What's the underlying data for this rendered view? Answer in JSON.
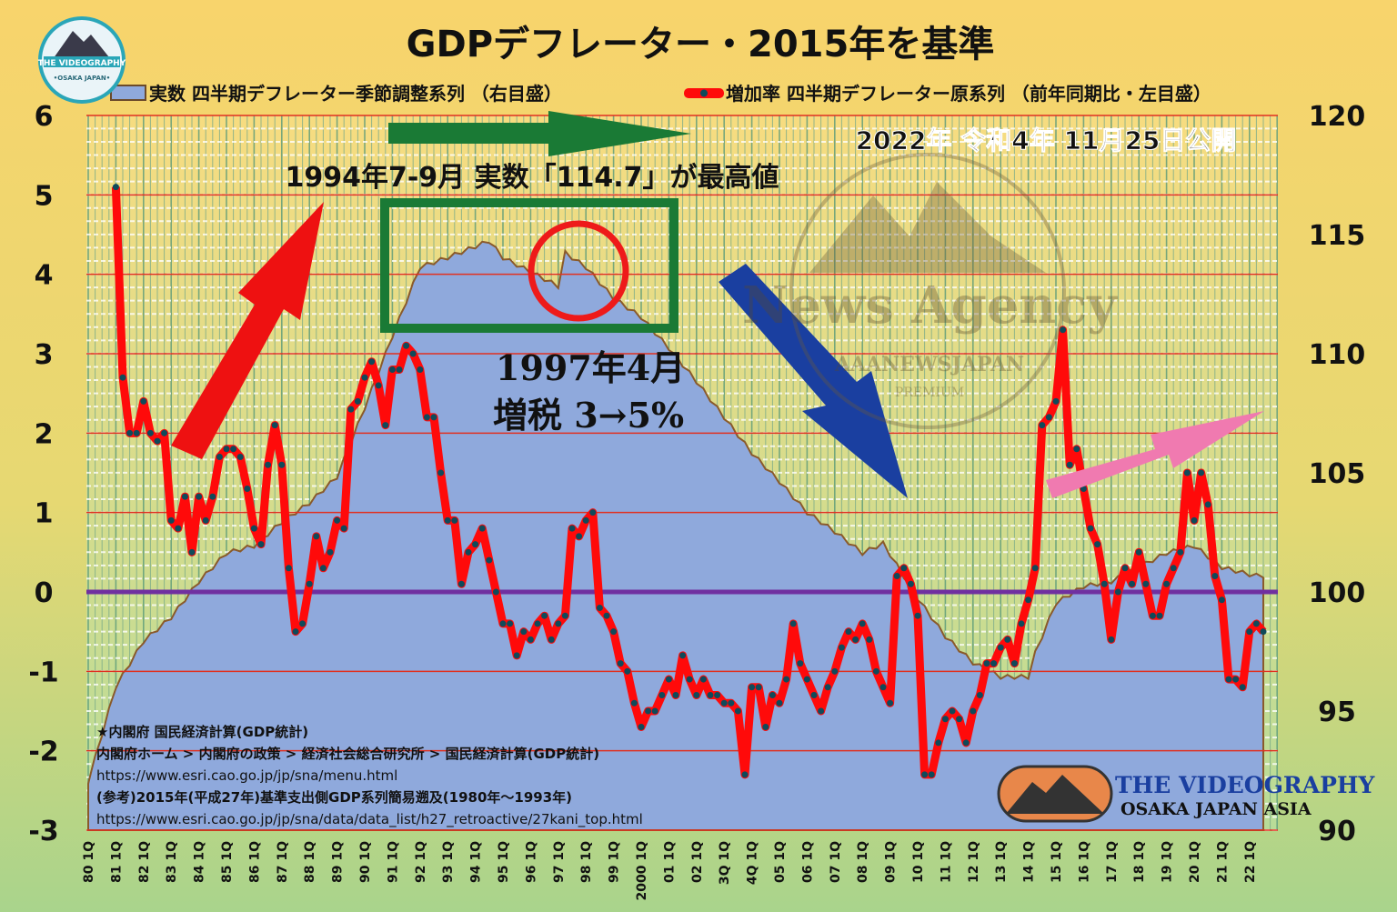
{
  "chart_data": {
    "type": "line+area",
    "title": "GDPデフレーター・2015年を基準",
    "legend": {
      "placement": "top",
      "area_series": "実数 四半期デフレーター季節調整系列 （右目盛）",
      "line_series": "増加率 四半期デフレーター原系列 （前年同期比・左目盛）"
    },
    "left_axis": {
      "ylim": [
        -3,
        6
      ],
      "ticks": [
        "6",
        "5",
        "4",
        "3",
        "2",
        "1",
        "0",
        "-1",
        "-2",
        "-3"
      ]
    },
    "right_axis": {
      "ylim": [
        90,
        120
      ],
      "ticks": [
        "120",
        "115",
        "110",
        "105",
        "100",
        "95",
        "90"
      ]
    },
    "x_tick_labels": [
      "80 1Q",
      "81 1Q",
      "82 1Q",
      "83 1Q",
      "84 1Q",
      "85 1Q",
      "86 1Q",
      "87 1Q",
      "88 1Q",
      "89 1Q",
      "90 1Q",
      "91 1Q",
      "92 1Q",
      "93 1Q",
      "94 1Q",
      "95 1Q",
      "96 1Q",
      "97 1Q",
      "98 1Q",
      "99 1Q",
      "2000 1Q",
      "01 1Q",
      "02 1Q",
      "3Q 1Q",
      "4Q 1Q",
      "05 1Q",
      "06 1Q",
      "07 1Q",
      "08 1Q",
      "09 1Q",
      "10 1Q",
      "11 1Q",
      "12 1Q",
      "13 1Q",
      "14 1Q",
      "15 1Q",
      "16 1Q",
      "17 1Q",
      "18 1Q",
      "19 1Q",
      "20 1Q",
      "21 1Q",
      "22 1Q"
    ],
    "grid": true,
    "colors": {
      "area": "#8fa9dc",
      "area_edge": "#8a5a2a",
      "line": "#ff0a0a",
      "marker": "#0f4a5a",
      "zero_line": "#7030a0",
      "gridline": "#e03020"
    },
    "growth_rate_series": {
      "name": "増加率 四半期デフレーター原系列",
      "start": "1981Q1",
      "values": [
        5.1,
        2.7,
        2.0,
        2.0,
        2.4,
        2.0,
        1.9,
        2.0,
        0.9,
        0.8,
        1.2,
        0.5,
        1.2,
        0.9,
        1.2,
        1.7,
        1.8,
        1.8,
        1.7,
        1.3,
        0.8,
        0.6,
        1.6,
        2.1,
        1.6,
        0.3,
        -0.5,
        -0.4,
        0.1,
        0.7,
        0.3,
        0.5,
        0.9,
        0.8,
        2.3,
        2.4,
        2.7,
        2.9,
        2.6,
        2.1,
        2.8,
        2.8,
        3.1,
        3.0,
        2.8,
        2.2,
        2.2,
        1.5,
        0.9,
        0.9,
        0.1,
        0.5,
        0.6,
        0.8,
        0.4,
        0.0,
        -0.4,
        -0.4,
        -0.8,
        -0.5,
        -0.6,
        -0.4,
        -0.3,
        -0.6,
        -0.4,
        -0.3,
        0.8,
        0.7,
        0.9,
        1.0,
        -0.2,
        -0.3,
        -0.5,
        -0.9,
        -1.0,
        -1.4,
        -1.7,
        -1.5,
        -1.5,
        -1.3,
        -1.1,
        -1.3,
        -0.8,
        -1.1,
        -1.3,
        -1.1,
        -1.3,
        -1.3,
        -1.4,
        -1.4,
        -1.5,
        -2.3,
        -1.2,
        -1.2,
        -1.7,
        -1.3,
        -1.4,
        -1.1,
        -0.4,
        -0.9,
        -1.1,
        -1.3,
        -1.5,
        -1.2,
        -1.0,
        -0.7,
        -0.5,
        -0.6,
        -0.4,
        -0.6,
        -1.0,
        -1.2,
        -1.4,
        0.2,
        0.3,
        0.1,
        -0.3,
        -2.3,
        -2.3,
        -1.9,
        -1.6,
        -1.5,
        -1.6,
        -1.9,
        -1.5,
        -1.3,
        -0.9,
        -0.9,
        -0.7,
        -0.6,
        -0.9,
        -0.4,
        -0.1,
        0.3,
        2.1,
        2.2,
        2.4,
        3.3,
        1.6,
        1.8,
        1.3,
        0.8,
        0.6,
        0.1,
        -0.6,
        0.0,
        0.3,
        0.1,
        0.5,
        0.1,
        -0.3,
        -0.3,
        0.1,
        0.3,
        0.5,
        1.5,
        0.9,
        1.5,
        1.1,
        0.2,
        -0.1,
        -1.1,
        -1.1,
        -1.2,
        -0.5,
        -0.4,
        -0.5
      ]
    },
    "level_series": {
      "name": "実数 四半期デフレーター季節調整系列",
      "points": [
        [
          "1980Q1",
          92.0
        ],
        [
          "1981Q1",
          96.0
        ],
        [
          "1982Q1",
          97.9
        ],
        [
          "1983Q1",
          98.9
        ],
        [
          "1984Q1",
          100.4
        ],
        [
          "1985Q1",
          101.6
        ],
        [
          "1986Q1",
          101.9
        ],
        [
          "1987Q1",
          102.9
        ],
        [
          "1988Q1",
          103.7
        ],
        [
          "1989Q1",
          104.8
        ],
        [
          "1990Q1",
          107.7
        ],
        [
          "1991Q1",
          110.7
        ],
        [
          "1992Q1",
          113.6
        ],
        [
          "1993Q1",
          114.0
        ],
        [
          "1994Q3",
          114.7
        ],
        [
          "1995Q1",
          114.0
        ],
        [
          "1996Q1",
          113.4
        ],
        [
          "1997Q1",
          112.8
        ],
        [
          "1997Q2",
          114.2
        ],
        [
          "1998Q1",
          113.6
        ],
        [
          "1999Q1",
          112.3
        ],
        [
          "2000Q1",
          111.5
        ],
        [
          "2001Q1",
          110.2
        ],
        [
          "2002Q1",
          108.8
        ],
        [
          "2003Q1",
          107.3
        ],
        [
          "2004Q1",
          105.8
        ],
        [
          "2005Q1",
          104.6
        ],
        [
          "2006Q1",
          103.3
        ],
        [
          "2007Q1",
          102.5
        ],
        [
          "2008Q1",
          101.6
        ],
        [
          "2008Q4",
          102.0
        ],
        [
          "2010Q1",
          99.7
        ],
        [
          "2011Q1",
          98.1
        ],
        [
          "2012Q1",
          97.0
        ],
        [
          "2013Q1",
          96.4
        ],
        [
          "2014Q1",
          96.4
        ],
        [
          "2014Q2",
          97.4
        ],
        [
          "2015Q1",
          99.5
        ],
        [
          "2016Q1",
          100.2
        ],
        [
          "2017Q1",
          100.4
        ],
        [
          "2018Q1",
          101.0
        ],
        [
          "2019Q1",
          101.6
        ],
        [
          "2020Q1",
          101.9
        ],
        [
          "2021Q1",
          101.0
        ],
        [
          "2022Q1",
          100.7
        ],
        [
          "2022Q3",
          100.6
        ]
      ]
    },
    "annotations": {
      "peak": "1994年7-9月 実数「114.7」が最高値",
      "tax_line1": "1997年4月",
      "tax_line2": "増税 3→5%",
      "published": "2022年 令和4年 11月25日公開"
    },
    "source": [
      "★内閣府 国民経済計算(GDP統計)",
      "内閣府ホーム > 内閣府の政策 > 経済社会総合研究所 > 国民経済計算(GDP統計)",
      "https://www.esri.cao.go.jp/jp/sna/menu.html",
      "(参考)2015年(平成27年)基準支出側GDP系列簡易遡及(1980年～1993年)",
      "https://www.esri.cao.go.jp/jp/sna/data/data_list/h27_retroactive/27kani_top.html"
    ]
  },
  "logos": {
    "top_left": {
      "line1": "THE VIDEOGRAPHY",
      "line2": "•OSAKA JAPAN•"
    },
    "watermark": {
      "line1": "News Agency",
      "line2": "AAANEWSJAPAN",
      "line3": "PREMIUM"
    },
    "bottom_right": {
      "line1": "THE VIDEOGRAPHY",
      "line2": "OSAKA JAPAN ASIA"
    }
  }
}
